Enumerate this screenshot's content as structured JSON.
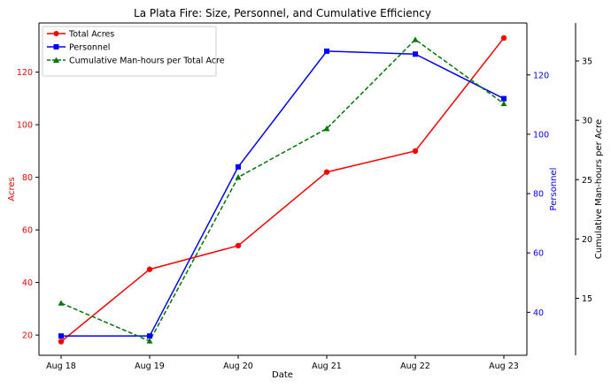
{
  "chart_data": {
    "type": "line",
    "title": "La Plata Fire: Size, Personnel, and Cumulative Efficiency",
    "xlabel": "Date",
    "categories": [
      "Aug 18",
      "Aug 19",
      "Aug 20",
      "Aug 21",
      "Aug 22",
      "Aug 23"
    ],
    "axes": [
      {
        "name": "Acres",
        "label": "Acres",
        "ylim": [
          12.3,
          138.7
        ],
        "ticks": [
          20,
          40,
          60,
          80,
          100,
          120
        ],
        "color": "#ff0000"
      },
      {
        "name": "Personnel",
        "label": "Personnel",
        "ylim": [
          25.5,
          137.5
        ],
        "ticks": [
          40,
          60,
          80,
          100,
          120
        ],
        "color": "#0000ff"
      },
      {
        "name": "Efficiency",
        "label": "Cumulative Man-hours per Acre",
        "ylim": [
          10.2,
          38.2
        ],
        "ticks": [
          15,
          20,
          25,
          30,
          35
        ],
        "color": "#000000"
      }
    ],
    "series": [
      {
        "name": "Total Acres",
        "axis": 0,
        "color": "#ff0000",
        "marker": "circle",
        "dashed": false,
        "values": [
          17.5,
          45,
          54,
          82,
          90,
          133
        ]
      },
      {
        "name": "Personnel",
        "axis": 1,
        "color": "#0000ff",
        "marker": "square",
        "dashed": false,
        "values": [
          32,
          32,
          89,
          128,
          127,
          112
        ]
      },
      {
        "name": "Cumulative Man-hours per Total Acre",
        "axis": 2,
        "color": "#007700",
        "marker": "triangle",
        "dashed": true,
        "values": [
          14.6,
          11.4,
          25.2,
          29.3,
          36.8,
          31.4
        ]
      }
    ],
    "legend": {
      "position": "top-left",
      "entries": [
        "Total Acres",
        "Personnel",
        "Cumulative Man-hours per Total Acre"
      ]
    }
  }
}
